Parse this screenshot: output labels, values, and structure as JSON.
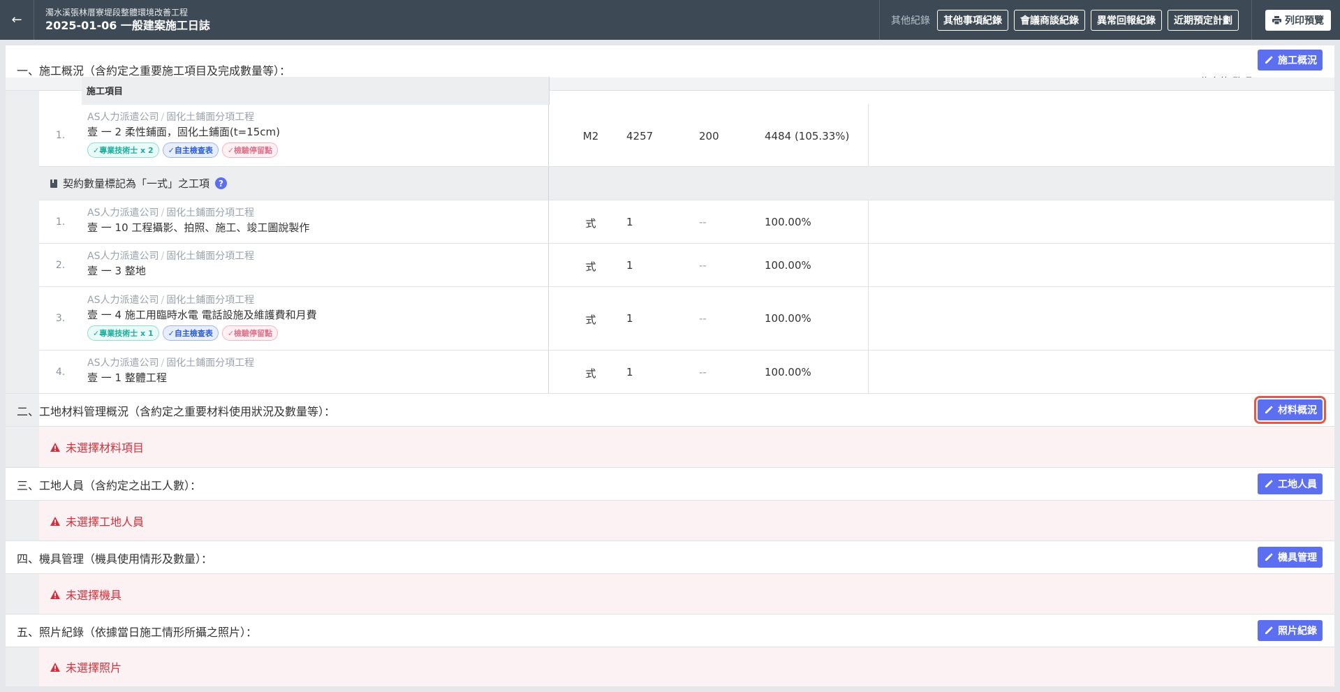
{
  "header": {
    "project_name": "濁水溪張林厝寮堤段整體環境改善工程",
    "log_title": "2025-01-06 一般建案施工日誌",
    "other_records_label": "其他紀錄",
    "other_buttons": [
      "其他事項紀錄",
      "會議商談紀錄",
      "異常回報紀錄",
      "近期預定計劃"
    ],
    "print_label": "列印預覽"
  },
  "section1": {
    "title": "一、施工概況（含約定之重要施工項目及完成數量等）：",
    "edit_label": "施工概況",
    "supervisor": "偉大的 監理 ( cyanne001 )",
    "table_header": "施工項目",
    "items": [
      {
        "num": "1.",
        "company": "AS人力派遣公司",
        "category": "固化土鋪面分項工程",
        "name": "壹 一 2  柔性鋪面，固化土鋪面(t=15cm)",
        "unit": "M2",
        "qty": "4257",
        "today": "200",
        "cumulative": "4484 (105.33%)",
        "tags": [
          "✓專業技術士 x 2",
          "✓自主檢查表",
          "✓檢驗停留點"
        ]
      }
    ],
    "lump_group_label": "契約數量標記為「一式」之工項",
    "lump_items": [
      {
        "num": "1.",
        "company": "AS人力派遣公司",
        "category": "固化土鋪面分項工程",
        "name": "壹 一 10  工程攝影、拍照、施工、竣工圖說製作",
        "unit": "式",
        "qty": "1",
        "today": "--",
        "cumulative": "100.00%"
      },
      {
        "num": "2.",
        "company": "AS人力派遣公司",
        "category": "固化土鋪面分項工程",
        "name": "壹 一 3  整地",
        "unit": "式",
        "qty": "1",
        "today": "--",
        "cumulative": "100.00%"
      },
      {
        "num": "3.",
        "company": "AS人力派遣公司",
        "category": "固化土鋪面分項工程",
        "name": "壹 一 4  施工用臨時水電 電話設施及維護費和月費",
        "unit": "式",
        "qty": "1",
        "today": "--",
        "cumulative": "100.00%",
        "tags": [
          "✓專業技術士 x 1",
          "✓自主檢查表",
          "✓檢驗停留點"
        ]
      },
      {
        "num": "4.",
        "company": "AS人力派遣公司",
        "category": "固化土鋪面分項工程",
        "name": "壹 一 1  整體工程",
        "unit": "式",
        "qty": "1",
        "today": "--",
        "cumulative": "100.00%"
      }
    ]
  },
  "section2": {
    "title": "二、工地材料管理概況（含約定之重要材料使用狀況及數量等）：",
    "edit_label": "材料概況",
    "empty": "未選擇材料項目"
  },
  "section3": {
    "title": "三、工地人員（含約定之出工人數）：",
    "edit_label": "工地人員",
    "empty": "未選擇工地人員"
  },
  "section4": {
    "title": "四、機具管理（機具使用情形及數量）：",
    "edit_label": "機具管理",
    "empty": "未選擇機具"
  },
  "section5": {
    "title": "五、照片紀錄（依據當日施工情形所攝之照片）：",
    "edit_label": "照片紀錄",
    "empty": "未選擇照片"
  },
  "colors": {
    "topbar": "#3d4a55",
    "accent": "#5b6ff0",
    "error": "#d32f3c",
    "error_bg": "#fdf2f3",
    "highlight": "#e05a4a"
  }
}
